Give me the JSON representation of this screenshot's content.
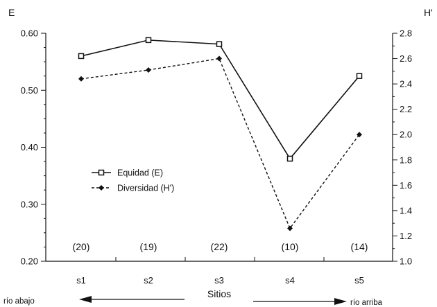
{
  "chart_data": {
    "type": "line",
    "x": [
      "s1",
      "s2",
      "s3",
      "s4",
      "s5"
    ],
    "xlabel": "Sitios",
    "left_axis": {
      "label": "E",
      "range": [
        0.2,
        0.6
      ],
      "tick_labels": [
        "0.20",
        "0.30",
        "0.40",
        "0.50",
        "0.60"
      ]
    },
    "right_axis": {
      "label": "H'",
      "range": [
        1.0,
        2.8
      ],
      "tick_labels": [
        "1.0",
        "1.2",
        "1.4",
        "1.6",
        "1.8",
        "2.0",
        "2.2",
        "2.4",
        "2.6",
        "2.8"
      ]
    },
    "series": [
      {
        "name": "Equidad (E)",
        "axis": "left",
        "style": "solid",
        "marker": "square",
        "color": "#111111",
        "values": [
          0.56,
          0.588,
          0.581,
          0.38,
          0.525
        ]
      },
      {
        "name": "Diversidad (H')",
        "axis": "right",
        "style": "dashed",
        "marker": "diamond",
        "color": "#111111",
        "values": [
          2.44,
          2.51,
          2.6,
          1.26,
          2.0
        ]
      }
    ],
    "sample_counts": [
      "(20)",
      "(19)",
      "(22)",
      "(10)",
      "(14)"
    ],
    "annotations": {
      "downstream": "río abajo",
      "upstream": "río arriba"
    },
    "grid": false,
    "legend_position": "center-left"
  }
}
